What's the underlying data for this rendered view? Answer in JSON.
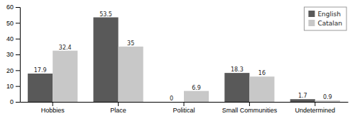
{
  "chart_data": {
    "type": "bar",
    "categories": [
      "Hobbies",
      "Place",
      "Political",
      "Small Communities",
      "Undetermined"
    ],
    "series": [
      {
        "name": "English",
        "color": "#595959",
        "values": [
          17.9,
          53.5,
          0,
          18.3,
          1.7
        ]
      },
      {
        "name": "Catalan",
        "color": "#c8c8c8",
        "values": [
          32.4,
          35,
          6.9,
          16,
          0.9
        ]
      }
    ],
    "ylim": [
      0,
      60
    ],
    "yticks": [
      0,
      10,
      20,
      30,
      40,
      50,
      60
    ],
    "grid": false,
    "legend": "upper right",
    "data_labels": true
  }
}
